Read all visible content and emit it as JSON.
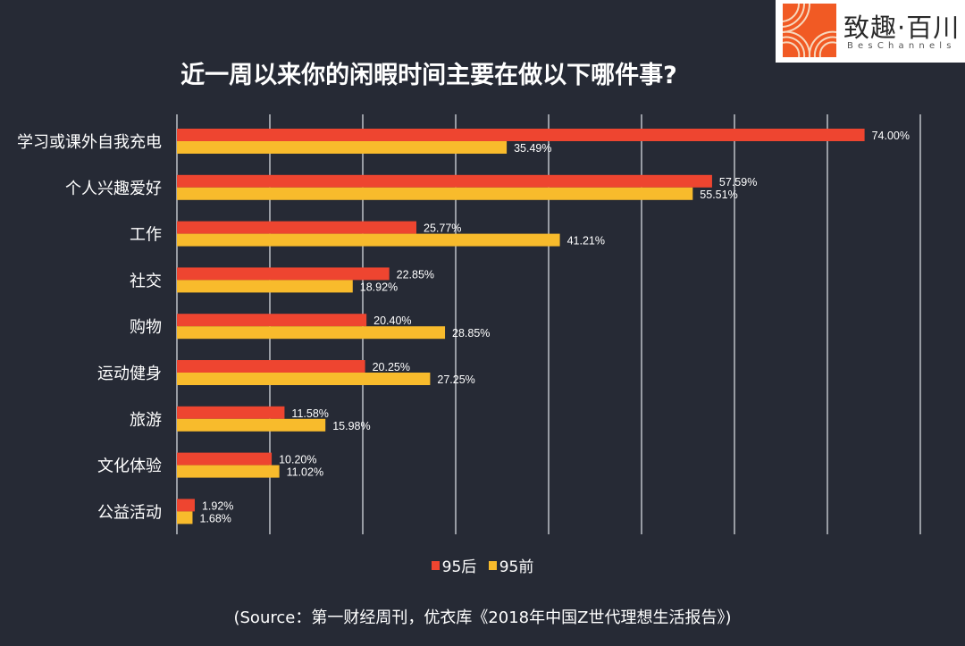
{
  "logo": {
    "name_cn": "致趣·百川",
    "name_en": "BesChannels",
    "brand_color": "#f15a24"
  },
  "chart_data": {
    "type": "bar",
    "orientation": "horizontal",
    "title": "近一周以来你的闲暇时间主要在做以下哪件事?",
    "xlabel": "",
    "ylabel": "",
    "unit": "%",
    "xlim": [
      0,
      80
    ],
    "grid_step": 10,
    "grid": true,
    "legend_position": "bottom",
    "categories": [
      "学习或课外自我充电",
      "个人兴趣爱好",
      "工作",
      "社交",
      "购物",
      "运动健身",
      "旅游",
      "文化体验",
      "公益活动"
    ],
    "series": [
      {
        "name": "95后",
        "color": "#ee4530",
        "values": [
          74.0,
          57.59,
          25.77,
          22.85,
          20.4,
          20.25,
          11.58,
          10.2,
          1.92
        ],
        "labels": [
          "74.00%",
          "57.59%",
          "25.77%",
          "22.85%",
          "20.40%",
          "20.25%",
          "11.58%",
          "10.20%",
          "1.92%"
        ]
      },
      {
        "name": "95前",
        "color": "#f8bb2c",
        "values": [
          35.49,
          55.51,
          41.21,
          18.92,
          28.85,
          27.25,
          15.98,
          11.02,
          1.68
        ],
        "labels": [
          "35.49%",
          "55.51%",
          "41.21%",
          "18.92%",
          "28.85%",
          "27.25%",
          "15.98%",
          "11.02%",
          "1.68%"
        ]
      }
    ]
  },
  "source": "(Source：第一财经周刊，优衣库《2018年中国Z世代理想生活报告》)"
}
